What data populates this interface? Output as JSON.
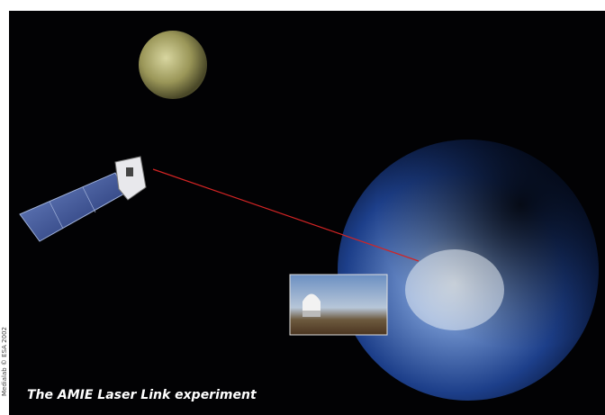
{
  "caption": "The AMIE Laser Link experiment",
  "credit": "Medialab © ESA 2002"
}
